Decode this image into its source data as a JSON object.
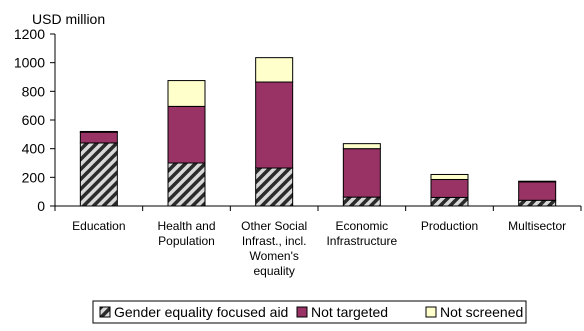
{
  "chart_data": {
    "type": "bar",
    "stacked": true,
    "title": "",
    "xlabel": "",
    "ylabel": "USD million",
    "ylim": [
      0,
      1200
    ],
    "yticks": [
      0,
      200,
      400,
      600,
      800,
      1000,
      1200
    ],
    "grid": false,
    "legend_position": "bottom",
    "categories": [
      [
        "Education"
      ],
      [
        "Health and",
        "Population"
      ],
      [
        "Other Social",
        "Infrast., incl.",
        "Women's",
        "equality"
      ],
      [
        "Economic",
        "Infrastructure"
      ],
      [
        "Production"
      ],
      [
        "Multisector"
      ]
    ],
    "series": [
      {
        "name": "Gender equality focused aid",
        "color": "#2b2b2b",
        "pattern": "diagonal-hatch",
        "values": [
          440,
          300,
          265,
          62,
          60,
          40
        ]
      },
      {
        "name": "Not targeted",
        "color": "#993366",
        "values": [
          75,
          395,
          600,
          338,
          125,
          128
        ]
      },
      {
        "name": "Not screened",
        "color": "#ffffcc",
        "values": [
          5,
          180,
          170,
          35,
          35,
          5
        ]
      }
    ]
  }
}
